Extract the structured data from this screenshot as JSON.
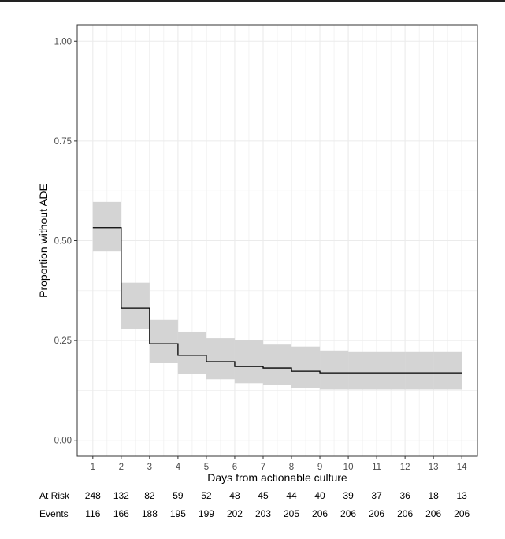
{
  "chart_data": {
    "type": "line",
    "subtype": "kaplan-meier step curve with confidence band",
    "title": "",
    "xlabel": "Days from actionable culture",
    "ylabel": "Proportion without ADE",
    "xlim": [
      0.45,
      14.55
    ],
    "ylim": [
      -0.04,
      1.04
    ],
    "x_ticks": [
      1,
      2,
      3,
      4,
      5,
      6,
      7,
      8,
      9,
      10,
      11,
      12,
      13,
      14
    ],
    "y_ticks": [
      0.0,
      0.25,
      0.5,
      0.75,
      1.0
    ],
    "y_tick_labels": [
      "0.00",
      "0.25",
      "0.50",
      "0.75",
      "1.00"
    ],
    "grid": true,
    "legend": "none",
    "series": [
      {
        "x": [
          1,
          2,
          3,
          4,
          5,
          6,
          7,
          8,
          9,
          10,
          11,
          12,
          13,
          14
        ],
        "y": [
          0.533,
          0.331,
          0.242,
          0.213,
          0.197,
          0.185,
          0.181,
          0.173,
          0.169,
          0.169,
          0.169,
          0.169,
          0.169,
          0.169
        ],
        "ci_lower": [
          0.473,
          0.278,
          0.193,
          0.167,
          0.153,
          0.143,
          0.139,
          0.131,
          0.127,
          0.127,
          0.127,
          0.127,
          0.127,
          0.127
        ],
        "ci_upper": [
          0.598,
          0.395,
          0.302,
          0.272,
          0.256,
          0.252,
          0.24,
          0.235,
          0.225,
          0.221,
          0.221,
          0.221,
          0.221,
          0.221
        ]
      }
    ],
    "colors": {
      "line": "#000000",
      "band": "#d4d4d4",
      "grid": "#ebebeb",
      "panel_border": "#333333"
    },
    "risk_table": {
      "rows": [
        {
          "label": "At Risk",
          "values": [
            "248",
            "132",
            "82",
            "59",
            "52",
            "48",
            "45",
            "44",
            "40",
            "39",
            "37",
            "36",
            "18",
            "13"
          ]
        },
        {
          "label": "Events",
          "values": [
            "116",
            "166",
            "188",
            "195",
            "199",
            "202",
            "203",
            "205",
            "206",
            "206",
            "206",
            "206",
            "206",
            "206"
          ]
        }
      ]
    }
  }
}
